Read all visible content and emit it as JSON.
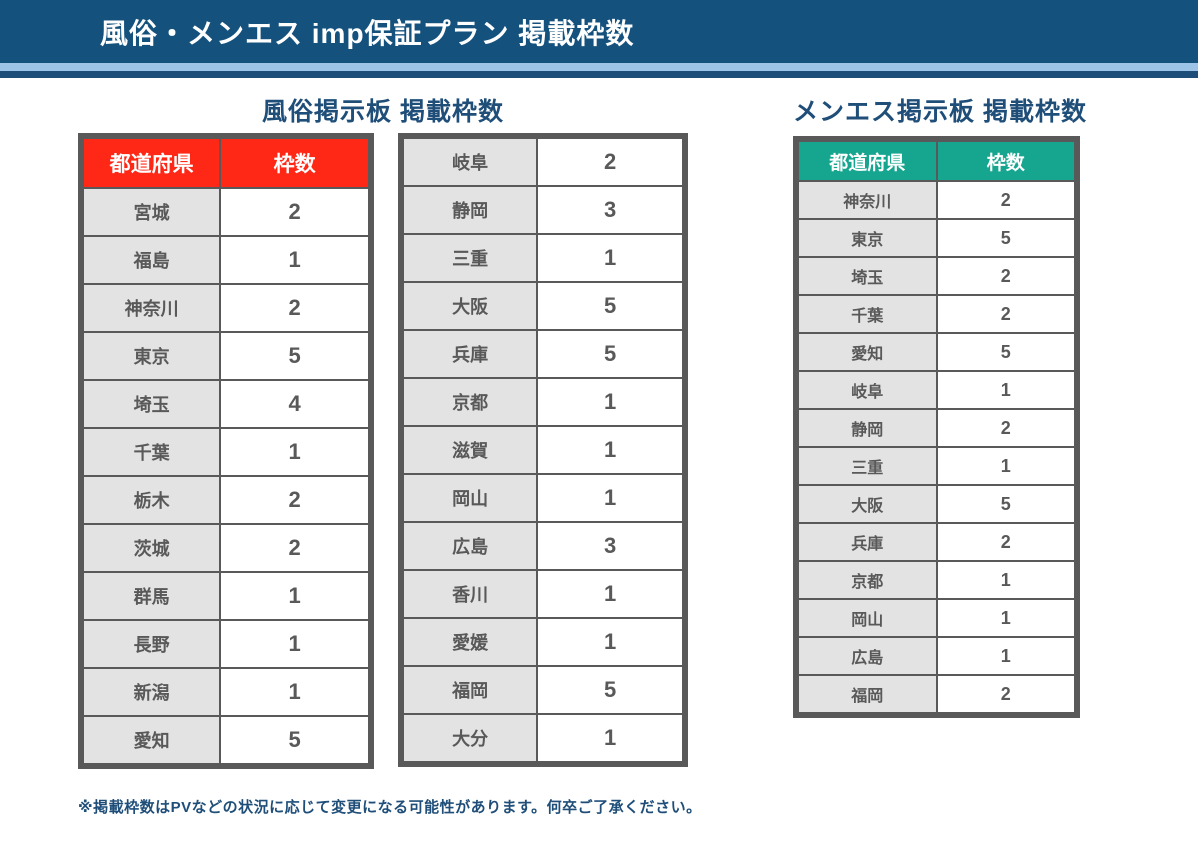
{
  "banner": {
    "title": "風俗・メンエス imp保証プラン 掲載枠数"
  },
  "fuzoku_section": {
    "title": "風俗掲示板 掲載枠数",
    "col_prefecture": "都道府県",
    "col_slots": "枠数",
    "header_color": "#FF2716",
    "table_a_rows": [
      {
        "prefecture": "宮城",
        "slots": "2"
      },
      {
        "prefecture": "福島",
        "slots": "1"
      },
      {
        "prefecture": "神奈川",
        "slots": "2"
      },
      {
        "prefecture": "東京",
        "slots": "5"
      },
      {
        "prefecture": "埼玉",
        "slots": "4"
      },
      {
        "prefecture": "千葉",
        "slots": "1"
      },
      {
        "prefecture": "栃木",
        "slots": "2"
      },
      {
        "prefecture": "茨城",
        "slots": "2"
      },
      {
        "prefecture": "群馬",
        "slots": "1"
      },
      {
        "prefecture": "長野",
        "slots": "1"
      },
      {
        "prefecture": "新潟",
        "slots": "1"
      },
      {
        "prefecture": "愛知",
        "slots": "5"
      }
    ],
    "table_b_rows": [
      {
        "prefecture": "岐阜",
        "slots": "2"
      },
      {
        "prefecture": "静岡",
        "slots": "3"
      },
      {
        "prefecture": "三重",
        "slots": "1"
      },
      {
        "prefecture": "大阪",
        "slots": "5"
      },
      {
        "prefecture": "兵庫",
        "slots": "5"
      },
      {
        "prefecture": "京都",
        "slots": "1"
      },
      {
        "prefecture": "滋賀",
        "slots": "1"
      },
      {
        "prefecture": "岡山",
        "slots": "1"
      },
      {
        "prefecture": "広島",
        "slots": "3"
      },
      {
        "prefecture": "香川",
        "slots": "1"
      },
      {
        "prefecture": "愛媛",
        "slots": "1"
      },
      {
        "prefecture": "福岡",
        "slots": "5"
      },
      {
        "prefecture": "大分",
        "slots": "1"
      }
    ]
  },
  "menesu_section": {
    "title": "メンエス掲示板 掲載枠数",
    "col_prefecture": "都道府県",
    "col_slots": "枠数",
    "header_color": "#16A58E",
    "rows": [
      {
        "prefecture": "神奈川",
        "slots": "2"
      },
      {
        "prefecture": "東京",
        "slots": "5"
      },
      {
        "prefecture": "埼玉",
        "slots": "2"
      },
      {
        "prefecture": "千葉",
        "slots": "2"
      },
      {
        "prefecture": "愛知",
        "slots": "5"
      },
      {
        "prefecture": "岐阜",
        "slots": "1"
      },
      {
        "prefecture": "静岡",
        "slots": "2"
      },
      {
        "prefecture": "三重",
        "slots": "1"
      },
      {
        "prefecture": "大阪",
        "slots": "5"
      },
      {
        "prefecture": "兵庫",
        "slots": "2"
      },
      {
        "prefecture": "京都",
        "slots": "1"
      },
      {
        "prefecture": "岡山",
        "slots": "1"
      },
      {
        "prefecture": "広島",
        "slots": "1"
      },
      {
        "prefecture": "福岡",
        "slots": "2"
      }
    ]
  },
  "footnote": "※掲載枠数はPVなどの状況に応じて変更になる可能性があります。何卒ご了承ください。",
  "colors": {
    "banner_bg": "#14517D",
    "stripe_light": "#9DC3E6",
    "stripe_dark": "#1C4E79",
    "section_title_text": "#1F4E79",
    "fuzoku_header_bg": "#FF2716",
    "menesu_header_bg": "#16A58E",
    "prefecture_cell_bg": "#E4E3E3",
    "table_border": "#595959",
    "cell_text": "#595959",
    "footnote_text": "#1F4E79"
  }
}
